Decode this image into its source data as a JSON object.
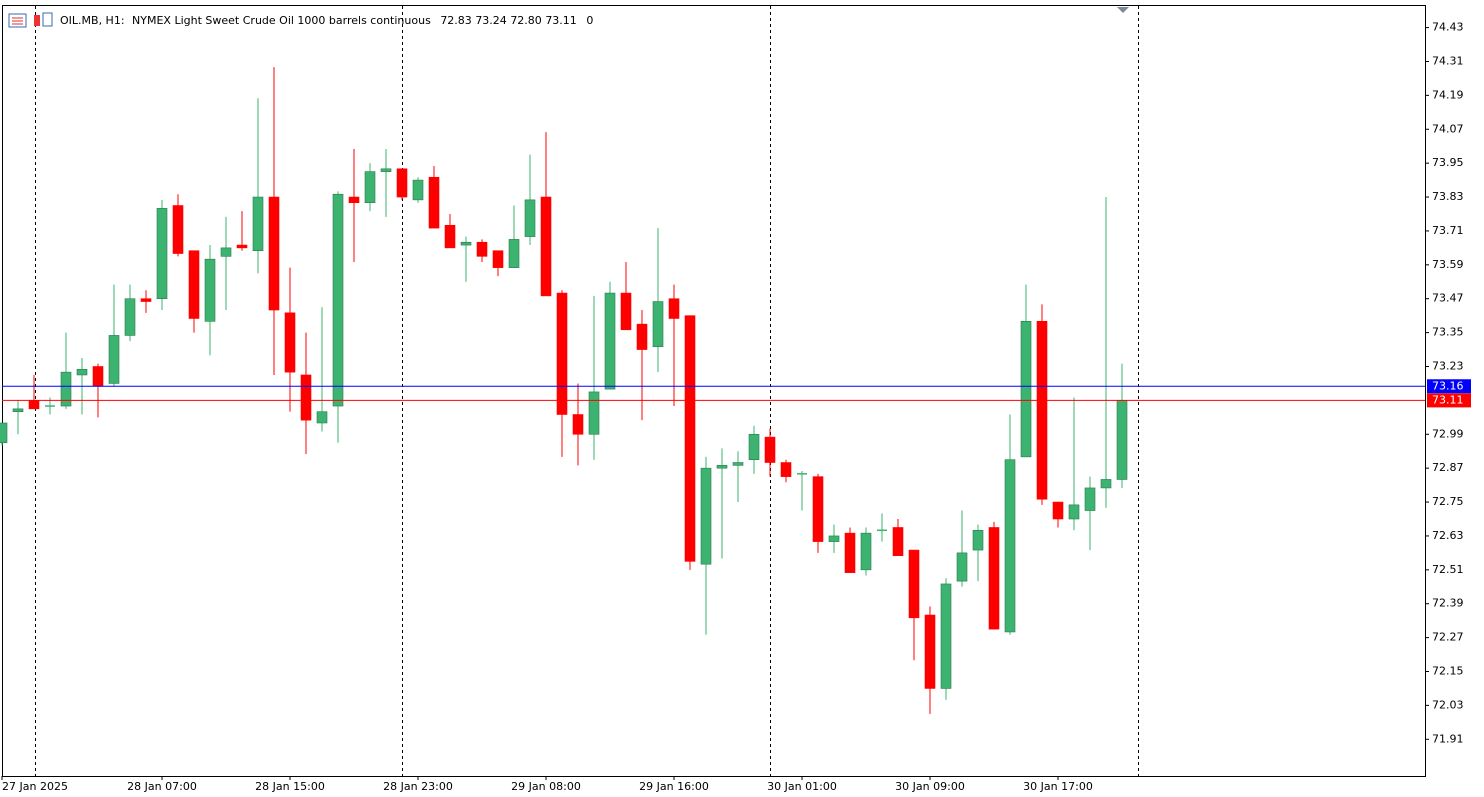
{
  "chart_data": {
    "type": "candlestick",
    "header": {
      "symbol": "OIL.MB, H1:",
      "description": "NYMEX Light Sweet Crude Oil 1000 barrels continuous",
      "ohlc": [
        72.83,
        73.24,
        {
          "value": 72.8,
          "label": "72.80"
        },
        73.11
      ],
      "spread": 0
    },
    "categories": [
      "27 Jan 2025",
      null,
      null,
      null,
      null,
      null,
      null,
      null,
      null,
      null,
      "28 Jan 07:00",
      null,
      null,
      null,
      null,
      null,
      null,
      null,
      "28 Jan 15:00",
      null,
      null,
      null,
      null,
      null,
      null,
      null,
      "28 Jan 23:00",
      null,
      null,
      null,
      null,
      null,
      null,
      null,
      "29 Jan 08:00",
      null,
      null,
      null,
      null,
      null,
      null,
      null,
      "29 Jan 16:00",
      null,
      null,
      null,
      null,
      null,
      null,
      null,
      "30 Jan 01:00",
      null,
      null,
      null,
      null,
      null,
      null,
      null,
      "30 Jan 09:00",
      null,
      null,
      null,
      null,
      null,
      null,
      null,
      "30 Jan 17:00",
      null,
      null,
      null,
      null
    ],
    "open": [
      72.96,
      73.07,
      73.11,
      73.09,
      73.09,
      73.2,
      73.23,
      73.17,
      73.34,
      73.47,
      73.47,
      73.8,
      73.64,
      73.39,
      73.62,
      73.66,
      73.64,
      73.83,
      73.42,
      73.2,
      73.03,
      73.09,
      73.83,
      73.81,
      73.92,
      73.93,
      73.82,
      73.9,
      73.73,
      73.66,
      73.67,
      73.64,
      73.58,
      73.69,
      73.83,
      73.49,
      73.06,
      72.99,
      73.15,
      73.49,
      73.38,
      73.3,
      73.47,
      73.41,
      72.53,
      72.87,
      72.88,
      72.9,
      72.98,
      72.89,
      72.85,
      72.84,
      72.61,
      72.64,
      72.51,
      72.65,
      72.66,
      72.58,
      72.35,
      72.09,
      72.47,
      72.58,
      72.66,
      72.29,
      72.91,
      73.39,
      72.75,
      72.69,
      72.72,
      72.8,
      72.83
    ],
    "high": [
      73.03,
      73.11,
      73.2,
      73.12,
      73.35,
      73.26,
      73.24,
      73.52,
      73.52,
      73.5,
      73.82,
      73.84,
      73.64,
      73.66,
      73.76,
      73.78,
      74.18,
      74.29,
      73.58,
      73.35,
      73.44,
      73.85,
      74.0,
      73.95,
      74.0,
      73.93,
      73.9,
      73.94,
      73.77,
      73.69,
      73.68,
      73.64,
      73.8,
      73.98,
      74.06,
      73.5,
      73.17,
      73.48,
      73.53,
      73.6,
      73.43,
      73.72,
      73.52,
      73.41,
      72.91,
      72.94,
      72.93,
      73.02,
      73.01,
      72.9,
      72.86,
      72.85,
      72.67,
      72.66,
      72.66,
      72.71,
      72.69,
      72.58,
      72.38,
      72.48,
      72.72,
      72.67,
      72.68,
      73.06,
      73.52,
      73.45,
      72.75,
      73.12,
      72.84,
      73.83,
      73.24
    ],
    "low": [
      72.95,
      72.99,
      73.08,
      73.06,
      73.08,
      73.06,
      73.05,
      73.16,
      73.32,
      73.42,
      73.43,
      73.62,
      73.35,
      73.27,
      73.43,
      73.64,
      73.56,
      73.2,
      73.07,
      72.92,
      73.0,
      72.96,
      73.6,
      73.78,
      73.76,
      73.82,
      73.81,
      73.72,
      73.65,
      73.53,
      73.6,
      73.55,
      73.58,
      73.66,
      73.48,
      72.91,
      72.88,
      72.9,
      73.15,
      73.36,
      73.04,
      73.21,
      73.09,
      72.51,
      72.28,
      72.55,
      72.75,
      72.85,
      72.84,
      72.82,
      72.72,
      72.57,
      72.57,
      72.5,
      72.49,
      72.61,
      72.56,
      72.19,
      72.0,
      72.05,
      72.45,
      72.47,
      72.3,
      72.28,
      72.91,
      72.74,
      72.66,
      72.65,
      72.58,
      72.73,
      72.8
    ],
    "close": [
      73.03,
      73.08,
      73.08,
      73.09,
      73.21,
      73.22,
      73.16,
      73.34,
      73.47,
      73.46,
      73.79,
      73.63,
      73.4,
      73.61,
      73.65,
      73.65,
      73.83,
      73.43,
      73.21,
      73.04,
      73.07,
      73.84,
      73.81,
      73.92,
      73.93,
      73.83,
      73.89,
      73.72,
      73.65,
      73.67,
      73.62,
      73.58,
      73.68,
      73.82,
      73.48,
      73.06,
      72.99,
      73.14,
      73.49,
      73.36,
      73.29,
      73.46,
      73.4,
      72.54,
      72.87,
      72.88,
      72.89,
      72.99,
      72.89,
      72.84,
      72.85,
      72.61,
      72.63,
      72.5,
      72.64,
      72.65,
      72.56,
      72.34,
      72.09,
      72.46,
      72.57,
      72.65,
      72.3,
      72.9,
      73.39,
      72.76,
      72.69,
      72.74,
      72.8,
      72.83,
      73.11
    ],
    "up_color": "#3cb371",
    "down_color": "#ff0000",
    "ylim": [
      71.78,
      74.51
    ],
    "yticks": [
      74.43,
      74.31,
      74.19,
      74.07,
      73.95,
      73.83,
      73.71,
      73.59,
      73.47,
      73.35,
      73.23,
      72.99,
      72.87,
      72.75,
      72.63,
      72.51,
      72.39,
      72.27,
      72.15,
      72.03,
      71.91
    ],
    "price_lines": [
      {
        "value": 73.16,
        "color": "#0000ff"
      },
      {
        "value": 73.11,
        "color": "#ff0000"
      }
    ]
  }
}
